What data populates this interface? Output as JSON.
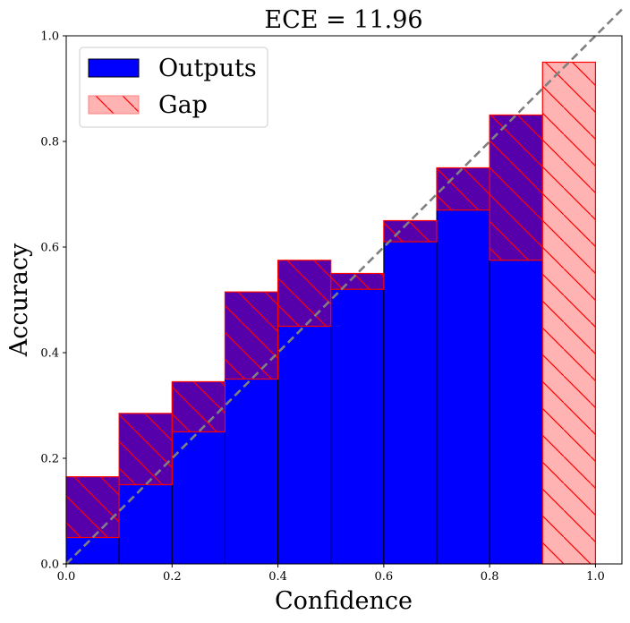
{
  "chart_data": {
    "type": "bar",
    "title": "ECE = 11.96",
    "xlabel": "Confidence",
    "ylabel": "Accuracy",
    "xlim": [
      0.0,
      1.05
    ],
    "ylim": [
      0.0,
      1.0
    ],
    "xticks": [
      "0.0",
      "0.2",
      "0.4",
      "0.6",
      "0.8",
      "1.0"
    ],
    "yticks": [
      "0.0",
      "0.2",
      "0.4",
      "0.6",
      "0.8",
      "1.0"
    ],
    "bin_edges": [
      0.0,
      0.1,
      0.2,
      0.3,
      0.4,
      0.5,
      0.6,
      0.7,
      0.8,
      0.9,
      1.0
    ],
    "series": [
      {
        "name": "Outputs",
        "values": [
          0.05,
          0.15,
          0.25,
          0.35,
          0.45,
          0.52,
          0.61,
          0.67,
          0.575,
          0.0
        ]
      },
      {
        "name": "Gap",
        "values": [
          0.165,
          0.285,
          0.345,
          0.515,
          0.575,
          0.55,
          0.65,
          0.75,
          0.85,
          0.95
        ]
      }
    ],
    "diagonal": {
      "style": "dashed",
      "color": "#808080"
    },
    "legend": {
      "position": "top-left",
      "items": [
        "Outputs",
        "Gap"
      ]
    },
    "colors": {
      "outputs": "#0000ff",
      "gap_fill": "#ffb3b3",
      "gap_edge": "#ff0000",
      "overlap": "#5500aa"
    }
  }
}
